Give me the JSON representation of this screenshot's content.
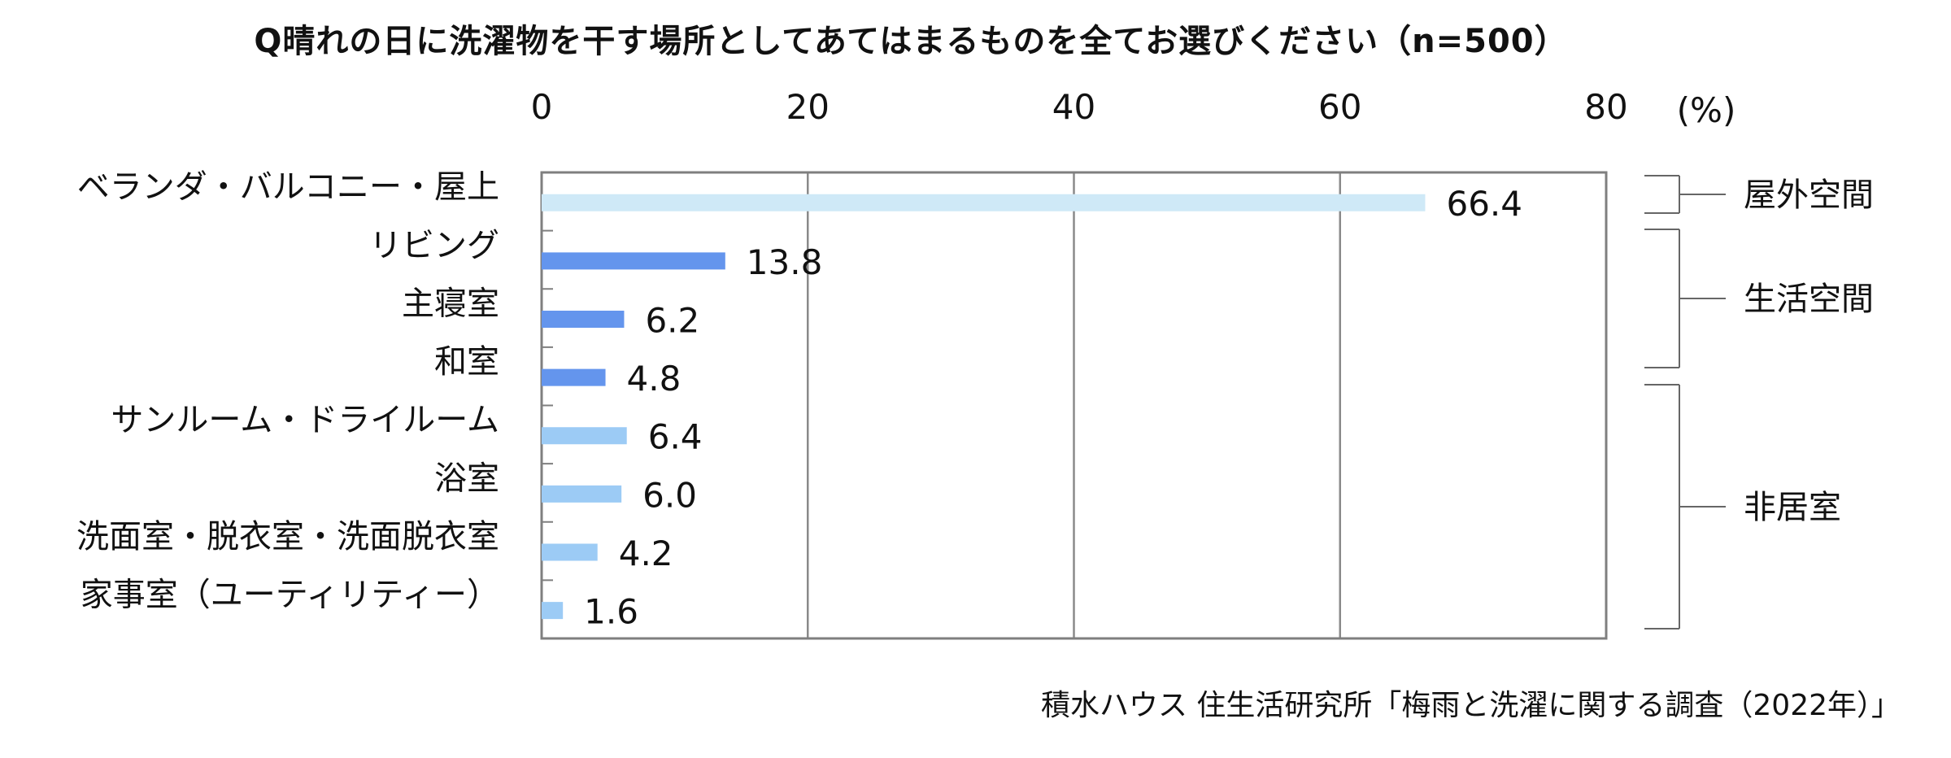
{
  "chart_data": {
    "type": "bar",
    "orientation": "horizontal",
    "title": "Q晴れの日に洗濯物を干す場所としてあてはまるものを全てお選びください（n=500）",
    "unit_label": "(%)",
    "xlim": [
      0,
      80
    ],
    "ticks": [
      "0",
      "20",
      "40",
      "60",
      "80"
    ],
    "grid": true,
    "categories": [
      "ベランダ・バルコニー・屋上",
      "リビング",
      "主寝室",
      "和室",
      "サンルーム・ドライルーム",
      "浴室",
      "洗面室・脱衣室・洗面脱衣室",
      "家事室（ユーティリティー）"
    ],
    "values": [
      66.4,
      13.8,
      6.2,
      4.8,
      6.4,
      6.0,
      4.2,
      1.6
    ],
    "value_labels": [
      "66.4",
      "13.8",
      "6.2",
      "4.8",
      "6.4",
      "6.0",
      "4.2",
      "1.6"
    ],
    "groups": [
      {
        "label": "屋外空間",
        "from": 0,
        "to": 0,
        "color": "#cfe9f7"
      },
      {
        "label": "生活空間",
        "from": 1,
        "to": 3,
        "color": "#6495ed"
      },
      {
        "label": "非居室",
        "from": 4,
        "to": 7,
        "color": "#9ccbf5"
      }
    ]
  },
  "source_note": "積水ハウス 住生活研究所「梅雨と洗濯に関する調査（2022年）」"
}
